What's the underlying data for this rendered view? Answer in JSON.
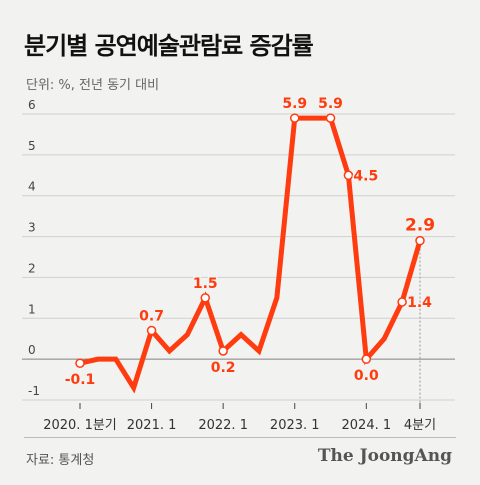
{
  "title": "분기별 공연예술관람료 증감률",
  "unit_note": "단위: %, 전년 동기 대비",
  "source": "자료: 통계청",
  "brand": "The JoongAng",
  "colors": {
    "line": "#ff3b10",
    "label": "#ff3b10",
    "grid": "#d0d0d0",
    "axis_text": "#444"
  },
  "chart_data": {
    "type": "line",
    "title": "분기별 공연예술관람료 증감률",
    "ylim": [
      -1,
      6
    ],
    "yticks": [
      6,
      5,
      4,
      3,
      2,
      1,
      0,
      -1
    ],
    "x": [
      "2020.1",
      "2020.2",
      "2020.3",
      "2020.4",
      "2021.1",
      "2021.2",
      "2021.3",
      "2021.4",
      "2022.1",
      "2022.2",
      "2022.3",
      "2022.4",
      "2023.1",
      "2023.2",
      "2023.3",
      "2023.4",
      "2024.1",
      "2024.2",
      "2024.3",
      "2024.4"
    ],
    "values": [
      -0.1,
      0.0,
      0.0,
      -0.7,
      0.7,
      0.2,
      0.6,
      1.5,
      0.2,
      0.6,
      0.2,
      1.5,
      5.9,
      5.9,
      5.9,
      4.5,
      0.0,
      0.5,
      1.4,
      2.9
    ],
    "xtick_labels": [
      {
        "index": 0,
        "label": "2020. 1분기"
      },
      {
        "index": 4,
        "label": "2021. 1"
      },
      {
        "index": 8,
        "label": "2022. 1"
      },
      {
        "index": 12,
        "label": "2023. 1"
      },
      {
        "index": 16,
        "label": "2024. 1"
      },
      {
        "index": 19,
        "label": "4분기"
      }
    ],
    "annotations": [
      {
        "index": 0,
        "text": "-0.1",
        "pos": "below"
      },
      {
        "index": 4,
        "text": "0.7",
        "pos": "above"
      },
      {
        "index": 7,
        "text": "1.5",
        "pos": "above"
      },
      {
        "index": 8,
        "text": "0.2",
        "pos": "below"
      },
      {
        "index": 12,
        "text": "5.9",
        "pos": "above"
      },
      {
        "index": 14,
        "text": "5.9",
        "pos": "above"
      },
      {
        "index": 15,
        "text": "4.5",
        "pos": "right"
      },
      {
        "index": 16,
        "text": "0.0",
        "pos": "below"
      },
      {
        "index": 18,
        "text": "1.4",
        "pos": "right"
      },
      {
        "index": 19,
        "text": "2.9",
        "pos": "above"
      }
    ],
    "grid": true,
    "legend": "none"
  }
}
